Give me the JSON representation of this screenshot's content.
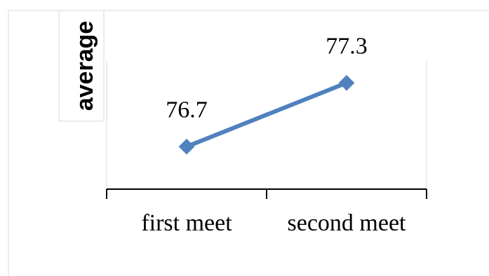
{
  "chart_data": {
    "type": "line",
    "title": "",
    "xlabel": "",
    "ylabel": "average",
    "categories": [
      "first meet",
      "second meet"
    ],
    "series": [
      {
        "values": [
          76.7,
          77.3
        ]
      }
    ],
    "ylim": [
      76.3,
      77.5
    ],
    "grid": false,
    "legend": "none",
    "colors": {
      "series": "#4f81bd",
      "axis": "#000000",
      "frame": "#d9d9d9",
      "background": "#ffffff"
    }
  }
}
